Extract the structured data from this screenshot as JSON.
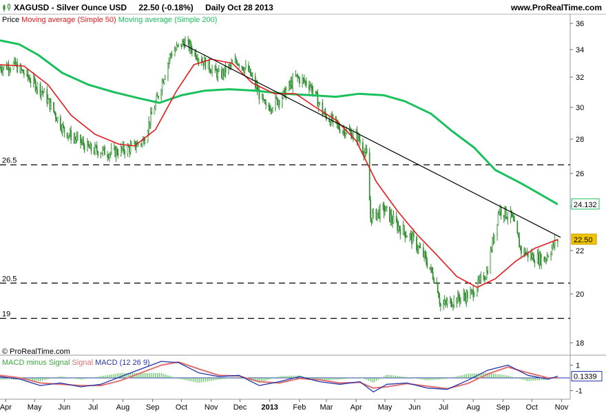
{
  "header": {
    "symbol": "XAGUSD - Silver Ounce USD",
    "price_change": "22.50 (-0.18%)",
    "timeframe": "Daily  Oct 28 2013",
    "site": "www.ProRealTime.com"
  },
  "legend": {
    "price": "Price",
    "ma50": "Moving average (Simple 50)",
    "ma200": "Moving average (Simple 200)"
  },
  "macd_legend": {
    "hist": "MACD minus Signal",
    "signal": "Signal",
    "macd": "MACD (12 26 9)"
  },
  "credit": "© ProRealTime.com",
  "colors": {
    "ma50": "#e31a1c",
    "ma200": "#19c15c",
    "candle": "#2e8b2e",
    "trend": "#000000",
    "macd": "#2233aa",
    "signal": "#e07070",
    "hist": "#5cc75c",
    "value_ma200_box": "#19c15c",
    "value_price_box": "#f2c400"
  },
  "chart_data": [
    {
      "type": "line",
      "title": "XAGUSD - Silver Ounce USD",
      "x_labels": [
        "Apr",
        "May",
        "Jun",
        "Jul",
        "Aug",
        "Sep",
        "Oct",
        "Nov",
        "Dec",
        "2013",
        "Feb",
        "Mar",
        "Apr",
        "May",
        "Jun",
        "Jul",
        "Aug",
        "Sep",
        "Oct",
        "Nov"
      ],
      "y_ticks": [
        18,
        20,
        22,
        24,
        26,
        28,
        30,
        32,
        34,
        36
      ],
      "ylim": [
        17.5,
        36.5
      ],
      "price_range": {
        "start": "2012-03-26",
        "end": "2013-10-28",
        "min": 18.2,
        "max": 35.4,
        "last": 22.5
      },
      "horizontal_levels": [
        {
          "label": "26.5",
          "value": 26.5
        },
        {
          "label": "20.5",
          "value": 20.5
        },
        {
          "label": "19",
          "value": 19.0
        }
      ],
      "trendline": {
        "start": {
          "x": "2012-10-03",
          "y": 34.4
        },
        "end": {
          "x": "2013-10-31",
          "y": 22.6
        }
      },
      "series": [
        {
          "name": "Moving average (Simple 50)",
          "x": [
            "2012-03-26",
            "2012-04-20",
            "2012-05-15",
            "2012-06-08",
            "2012-07-03",
            "2012-07-28",
            "2012-08-13",
            "2012-09-04",
            "2012-09-26",
            "2012-10-14",
            "2012-11-01",
            "2012-11-23",
            "2012-12-14",
            "2013-01-06",
            "2013-01-28",
            "2013-02-18",
            "2013-03-11",
            "2013-04-01",
            "2013-04-22",
            "2013-05-14",
            "2013-06-04",
            "2013-06-24",
            "2013-07-15",
            "2013-08-05",
            "2013-08-24",
            "2013-09-14",
            "2013-10-04",
            "2013-10-28"
          ],
          "y": [
            32.9,
            32.8,
            31.5,
            29.5,
            28.3,
            27.7,
            27.6,
            28.6,
            31.1,
            32.9,
            33.3,
            33.0,
            31.6,
            30.9,
            30.9,
            30.0,
            29.2,
            27.9,
            25.5,
            23.8,
            22.7,
            21.8,
            20.8,
            20.3,
            20.7,
            21.5,
            22.1,
            22.5
          ]
        },
        {
          "name": "Moving average (Simple 200)",
          "x": [
            "2012-03-26",
            "2012-04-15",
            "2012-05-05",
            "2012-05-30",
            "2012-06-26",
            "2012-07-23",
            "2012-08-18",
            "2012-09-08",
            "2012-10-01",
            "2012-10-25",
            "2012-11-20",
            "2012-12-17",
            "2013-01-17",
            "2013-02-14",
            "2013-03-11",
            "2013-04-04",
            "2013-04-30",
            "2013-05-22",
            "2013-06-18",
            "2013-07-10",
            "2013-08-02",
            "2013-08-24",
            "2013-09-20",
            "2013-10-14",
            "2013-10-28"
          ],
          "y": [
            34.7,
            34.4,
            33.6,
            32.3,
            31.5,
            31.0,
            30.6,
            30.3,
            30.8,
            31.1,
            31.2,
            31.1,
            30.9,
            30.8,
            30.7,
            30.9,
            30.8,
            30.4,
            29.6,
            28.5,
            27.5,
            26.2,
            25.4,
            24.6,
            24.132
          ]
        }
      ],
      "value_boxes": [
        {
          "label": "24.132",
          "value": 24.132
        },
        {
          "label": "22.50",
          "value": 22.5
        }
      ]
    },
    {
      "type": "line",
      "title": "MACD (12 26 9)",
      "y_ticks": [
        1,
        -1
      ],
      "ylim": [
        -1.2,
        1.3
      ],
      "value_box": {
        "label": "0.1339",
        "value": 0.1339
      },
      "series": [
        {
          "name": "MACD",
          "x": [
            "2012-03-26",
            "2012-04-16",
            "2012-05-07",
            "2012-05-28",
            "2012-06-18",
            "2012-07-09",
            "2012-07-30",
            "2012-08-20",
            "2012-09-10",
            "2012-09-28",
            "2012-10-19",
            "2012-11-09",
            "2012-11-30",
            "2012-12-21",
            "2013-01-11",
            "2013-02-01",
            "2013-02-22",
            "2013-03-15",
            "2013-04-05",
            "2013-04-19",
            "2013-05-03",
            "2013-05-24",
            "2013-06-14",
            "2013-07-05",
            "2013-07-26",
            "2013-08-16",
            "2013-09-06",
            "2013-09-27",
            "2013-10-18",
            "2013-10-28"
          ],
          "y": [
            0.1,
            -0.1,
            -0.6,
            -0.4,
            -0.7,
            -0.5,
            0.1,
            0.7,
            1.3,
            1.2,
            0.4,
            0.1,
            0.2,
            -0.6,
            -0.3,
            0.1,
            -0.3,
            -0.5,
            -0.3,
            -1.1,
            -0.5,
            -0.4,
            -0.8,
            -0.9,
            -0.2,
            0.6,
            1.0,
            0.2,
            -0.1,
            0.13
          ]
        },
        {
          "name": "Signal",
          "x": [
            "2012-03-26",
            "2012-04-16",
            "2012-05-07",
            "2012-05-28",
            "2012-06-18",
            "2012-07-09",
            "2012-07-30",
            "2012-08-20",
            "2012-09-10",
            "2012-09-28",
            "2012-10-19",
            "2012-11-09",
            "2012-11-30",
            "2012-12-21",
            "2013-01-11",
            "2013-02-01",
            "2013-02-22",
            "2013-03-15",
            "2013-04-05",
            "2013-04-19",
            "2013-05-03",
            "2013-05-24",
            "2013-06-14",
            "2013-07-05",
            "2013-07-26",
            "2013-08-16",
            "2013-09-06",
            "2013-09-27",
            "2013-10-18",
            "2013-10-28"
          ],
          "y": [
            0.2,
            0.0,
            -0.4,
            -0.5,
            -0.6,
            -0.6,
            -0.2,
            0.4,
            1.0,
            1.25,
            0.7,
            0.2,
            0.15,
            -0.3,
            -0.4,
            -0.05,
            -0.15,
            -0.4,
            -0.35,
            -0.8,
            -0.7,
            -0.45,
            -0.65,
            -0.85,
            -0.45,
            0.3,
            0.85,
            0.4,
            0.0,
            0.0
          ]
        }
      ]
    }
  ]
}
